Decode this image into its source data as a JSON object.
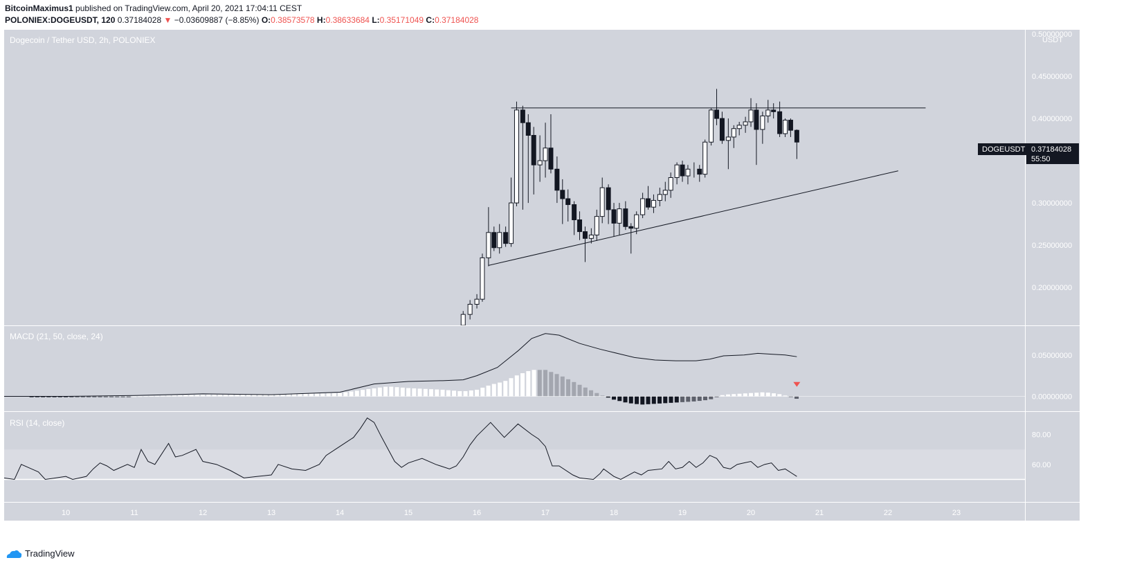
{
  "header": {
    "author": "BitcoinMaximus1",
    "published": "published on TradingView.com, April 20, 2021 17:04:11 CEST",
    "symbol_line": "POLONIEX:DOGEUSDT, 120",
    "last": "0.37184028",
    "change": "−0.03609887 (−8.85%)",
    "o_label": "O:",
    "o": "0.38573578",
    "h_label": "H:",
    "h": "0.38633684",
    "l_label": "L:",
    "l": "0.35171049",
    "c_label": "C:",
    "c": "0.37184028"
  },
  "colors": {
    "panel_bg": "#d1d4dc",
    "up": "#ffffff",
    "down": "#131722",
    "price_down": "#ef5350",
    "rsi_band": "#dadce3"
  },
  "chart_data": {
    "type": "candlestick",
    "title": "Dogecoin / Tether USD, 2h, POLONIEX",
    "currency": "USDT",
    "symbol_badge": "DOGEUSDT",
    "last_price": "0.37184028",
    "countdown": "55:50",
    "x_ticks": [
      "10",
      "11",
      "12",
      "13",
      "14",
      "15",
      "16",
      "17",
      "18",
      "19",
      "20",
      "21",
      "22",
      "23"
    ],
    "x_range_days": [
      9.1,
      24.0
    ],
    "price_ticks": [
      "0.50000000",
      "0.45000000",
      "0.40000000",
      "0.35000000",
      "0.30000000",
      "0.25000000",
      "0.20000000"
    ],
    "price_range": [
      0.155,
      0.505
    ],
    "candles": [
      [
        15.8,
        0.15,
        0.172,
        0.14,
        0.168
      ],
      [
        15.9,
        0.168,
        0.185,
        0.162,
        0.18
      ],
      [
        16.0,
        0.18,
        0.192,
        0.175,
        0.186
      ],
      [
        16.08,
        0.186,
        0.24,
        0.183,
        0.235
      ],
      [
        16.17,
        0.235,
        0.295,
        0.225,
        0.265
      ],
      [
        16.25,
        0.265,
        0.272,
        0.243,
        0.247
      ],
      [
        16.33,
        0.247,
        0.275,
        0.24,
        0.265
      ],
      [
        16.42,
        0.265,
        0.272,
        0.248,
        0.252
      ],
      [
        16.5,
        0.252,
        0.33,
        0.248,
        0.3
      ],
      [
        16.58,
        0.3,
        0.42,
        0.296,
        0.41
      ],
      [
        16.67,
        0.41,
        0.415,
        0.292,
        0.395
      ],
      [
        16.75,
        0.395,
        0.405,
        0.3,
        0.38
      ],
      [
        16.83,
        0.38,
        0.39,
        0.31,
        0.345
      ],
      [
        16.92,
        0.345,
        0.38,
        0.325,
        0.35
      ],
      [
        17.0,
        0.35,
        0.395,
        0.33,
        0.365
      ],
      [
        17.08,
        0.365,
        0.405,
        0.335,
        0.34
      ],
      [
        17.17,
        0.34,
        0.355,
        0.3,
        0.315
      ],
      [
        17.25,
        0.315,
        0.328,
        0.275,
        0.305
      ],
      [
        17.33,
        0.305,
        0.316,
        0.278,
        0.298
      ],
      [
        17.42,
        0.298,
        0.302,
        0.262,
        0.28
      ],
      [
        17.5,
        0.28,
        0.29,
        0.256,
        0.266
      ],
      [
        17.58,
        0.266,
        0.272,
        0.23,
        0.258
      ],
      [
        17.67,
        0.258,
        0.27,
        0.252,
        0.262
      ],
      [
        17.75,
        0.262,
        0.292,
        0.255,
        0.284
      ],
      [
        17.83,
        0.284,
        0.33,
        0.276,
        0.318
      ],
      [
        17.92,
        0.318,
        0.322,
        0.275,
        0.292
      ],
      [
        18.0,
        0.292,
        0.3,
        0.26,
        0.276
      ],
      [
        18.08,
        0.276,
        0.3,
        0.262,
        0.293
      ],
      [
        18.17,
        0.293,
        0.302,
        0.268,
        0.272
      ],
      [
        18.25,
        0.272,
        0.276,
        0.24,
        0.27
      ],
      [
        18.33,
        0.27,
        0.29,
        0.263,
        0.286
      ],
      [
        18.42,
        0.286,
        0.312,
        0.282,
        0.305
      ],
      [
        18.5,
        0.305,
        0.32,
        0.292,
        0.295
      ],
      [
        18.58,
        0.295,
        0.31,
        0.288,
        0.303
      ],
      [
        18.67,
        0.303,
        0.318,
        0.296,
        0.31
      ],
      [
        18.75,
        0.31,
        0.325,
        0.302,
        0.315
      ],
      [
        18.83,
        0.315,
        0.336,
        0.306,
        0.33
      ],
      [
        18.92,
        0.33,
        0.348,
        0.322,
        0.345
      ],
      [
        19.0,
        0.345,
        0.35,
        0.325,
        0.332
      ],
      [
        19.08,
        0.332,
        0.345,
        0.322,
        0.34
      ],
      [
        19.17,
        0.34,
        0.348,
        0.33,
        0.34
      ],
      [
        19.25,
        0.34,
        0.345,
        0.325,
        0.334
      ],
      [
        19.33,
        0.334,
        0.375,
        0.33,
        0.372
      ],
      [
        19.42,
        0.372,
        0.412,
        0.368,
        0.41
      ],
      [
        19.5,
        0.41,
        0.435,
        0.392,
        0.4
      ],
      [
        19.58,
        0.4,
        0.408,
        0.37,
        0.374
      ],
      [
        19.67,
        0.374,
        0.4,
        0.34,
        0.378
      ],
      [
        19.75,
        0.378,
        0.392,
        0.365,
        0.388
      ],
      [
        19.83,
        0.388,
        0.396,
        0.38,
        0.392
      ],
      [
        19.92,
        0.392,
        0.402,
        0.383,
        0.396
      ],
      [
        20.0,
        0.396,
        0.424,
        0.39,
        0.41
      ],
      [
        20.08,
        0.41,
        0.418,
        0.345,
        0.387
      ],
      [
        20.17,
        0.387,
        0.408,
        0.37,
        0.403
      ],
      [
        20.25,
        0.403,
        0.422,
        0.395,
        0.41
      ],
      [
        20.33,
        0.41,
        0.418,
        0.4,
        0.408
      ],
      [
        20.42,
        0.408,
        0.42,
        0.378,
        0.382
      ],
      [
        20.5,
        0.382,
        0.4,
        0.378,
        0.398
      ],
      [
        20.58,
        0.398,
        0.4,
        0.378,
        0.386
      ],
      [
        20.67,
        0.386,
        0.387,
        0.352,
        0.372
      ]
    ],
    "trendlines": [
      {
        "kind": "resistance",
        "from": [
          16.5,
          0.4125
        ],
        "to": [
          22.55,
          0.4125
        ]
      },
      {
        "kind": "support",
        "from": [
          16.17,
          0.226
        ],
        "to": [
          22.15,
          0.338
        ]
      }
    ],
    "macd": {
      "label": "MACD (21, 50, close, 24)",
      "ticks": [
        "0.05000000",
        "0.00000000"
      ],
      "range": [
        -0.018,
        0.085
      ],
      "line": [
        [
          9.1,
          0.0
        ],
        [
          10.0,
          0.0
        ],
        [
          11.0,
          0.001
        ],
        [
          12.0,
          0.003
        ],
        [
          13.0,
          0.002
        ],
        [
          14.0,
          0.005
        ],
        [
          14.5,
          0.015
        ],
        [
          15.0,
          0.018
        ],
        [
          15.5,
          0.019
        ],
        [
          15.8,
          0.02
        ],
        [
          16.0,
          0.025
        ],
        [
          16.3,
          0.035
        ],
        [
          16.6,
          0.055
        ],
        [
          16.8,
          0.07
        ],
        [
          17.0,
          0.076
        ],
        [
          17.2,
          0.074
        ],
        [
          17.5,
          0.064
        ],
        [
          17.8,
          0.057
        ],
        [
          18.1,
          0.051
        ],
        [
          18.3,
          0.047
        ],
        [
          18.6,
          0.044
        ],
        [
          18.9,
          0.043
        ],
        [
          19.2,
          0.043
        ],
        [
          19.4,
          0.045
        ],
        [
          19.6,
          0.049
        ],
        [
          19.9,
          0.05
        ],
        [
          20.1,
          0.052
        ],
        [
          20.3,
          0.051
        ],
        [
          20.5,
          0.05
        ],
        [
          20.67,
          0.048
        ]
      ],
      "hist": [
        [
          9.5,
          -0.001
        ],
        [
          10.0,
          -0.001
        ],
        [
          11.0,
          0.0
        ],
        [
          12.0,
          0.002
        ],
        [
          13.0,
          0.002
        ],
        [
          14.0,
          0.004
        ],
        [
          14.7,
          0.012
        ],
        [
          15.0,
          0.01
        ],
        [
          15.5,
          0.008
        ],
        [
          15.8,
          0.006
        ],
        [
          16.0,
          0.008
        ],
        [
          16.2,
          0.014
        ],
        [
          16.4,
          0.018
        ],
        [
          16.6,
          0.026
        ],
        [
          16.8,
          0.032
        ],
        [
          17.0,
          0.032
        ],
        [
          17.2,
          0.026
        ],
        [
          17.4,
          0.018
        ],
        [
          17.6,
          0.01
        ],
        [
          17.8,
          0.002
        ],
        [
          18.0,
          -0.004
        ],
        [
          18.2,
          -0.008
        ],
        [
          18.4,
          -0.01
        ],
        [
          18.6,
          -0.009
        ],
        [
          18.8,
          -0.008
        ],
        [
          19.0,
          -0.007
        ],
        [
          19.2,
          -0.006
        ],
        [
          19.4,
          -0.004
        ],
        [
          19.6,
          0.002
        ],
        [
          19.8,
          0.003
        ],
        [
          20.0,
          0.004
        ],
        [
          20.2,
          0.005
        ],
        [
          20.4,
          0.003
        ],
        [
          20.55,
          0.0
        ],
        [
          20.67,
          -0.003
        ]
      ],
      "signal_marker": [
        20.67,
        0.014
      ]
    },
    "rsi": {
      "label": "RSI (14, close)",
      "ticks": [
        "80.00",
        "60.00"
      ],
      "range": [
        35,
        95
      ],
      "band": [
        50,
        70
      ],
      "line": [
        [
          9.1,
          51
        ],
        [
          9.25,
          50
        ],
        [
          9.35,
          60
        ],
        [
          9.5,
          57
        ],
        [
          9.6,
          55
        ],
        [
          9.7,
          50
        ],
        [
          9.85,
          51
        ],
        [
          10.0,
          52
        ],
        [
          10.1,
          50
        ],
        [
          10.3,
          52
        ],
        [
          10.4,
          57
        ],
        [
          10.5,
          61
        ],
        [
          10.6,
          59
        ],
        [
          10.7,
          56
        ],
        [
          10.9,
          60
        ],
        [
          11.0,
          58
        ],
        [
          11.1,
          70
        ],
        [
          11.2,
          62
        ],
        [
          11.3,
          60
        ],
        [
          11.5,
          74
        ],
        [
          11.6,
          65
        ],
        [
          11.7,
          66
        ],
        [
          11.9,
          70
        ],
        [
          12.0,
          62
        ],
        [
          12.2,
          60
        ],
        [
          12.4,
          56
        ],
        [
          12.6,
          51
        ],
        [
          12.8,
          52
        ],
        [
          13.0,
          53
        ],
        [
          13.1,
          60
        ],
        [
          13.3,
          57
        ],
        [
          13.5,
          56
        ],
        [
          13.7,
          60
        ],
        [
          13.8,
          66
        ],
        [
          14.0,
          72
        ],
        [
          14.1,
          75
        ],
        [
          14.2,
          78
        ],
        [
          14.3,
          84
        ],
        [
          14.4,
          91
        ],
        [
          14.5,
          88
        ],
        [
          14.6,
          79
        ],
        [
          14.8,
          62
        ],
        [
          14.9,
          58
        ],
        [
          15.0,
          61
        ],
        [
          15.2,
          64
        ],
        [
          15.4,
          60
        ],
        [
          15.6,
          57
        ],
        [
          15.7,
          59
        ],
        [
          15.8,
          65
        ],
        [
          15.9,
          73
        ],
        [
          16.0,
          79
        ],
        [
          16.2,
          88
        ],
        [
          16.4,
          78
        ],
        [
          16.6,
          87
        ],
        [
          16.8,
          80
        ],
        [
          16.9,
          77
        ],
        [
          17.0,
          72
        ],
        [
          17.1,
          59
        ],
        [
          17.2,
          59
        ],
        [
          17.4,
          53
        ],
        [
          17.5,
          51
        ],
        [
          17.7,
          50
        ],
        [
          17.8,
          54
        ],
        [
          17.85,
          57
        ],
        [
          18.0,
          52
        ],
        [
          18.1,
          50
        ],
        [
          18.3,
          55
        ],
        [
          18.4,
          53
        ],
        [
          18.5,
          56
        ],
        [
          18.7,
          57
        ],
        [
          18.8,
          62
        ],
        [
          18.9,
          57
        ],
        [
          19.0,
          58
        ],
        [
          19.1,
          62
        ],
        [
          19.2,
          58
        ],
        [
          19.3,
          61
        ],
        [
          19.4,
          66
        ],
        [
          19.5,
          64
        ],
        [
          19.6,
          58
        ],
        [
          19.7,
          57
        ],
        [
          19.8,
          60
        ],
        [
          19.9,
          61
        ],
        [
          20.0,
          62
        ],
        [
          20.1,
          58
        ],
        [
          20.2,
          60
        ],
        [
          20.3,
          61
        ],
        [
          20.4,
          56
        ],
        [
          20.5,
          57
        ],
        [
          20.67,
          52
        ]
      ]
    }
  }
}
